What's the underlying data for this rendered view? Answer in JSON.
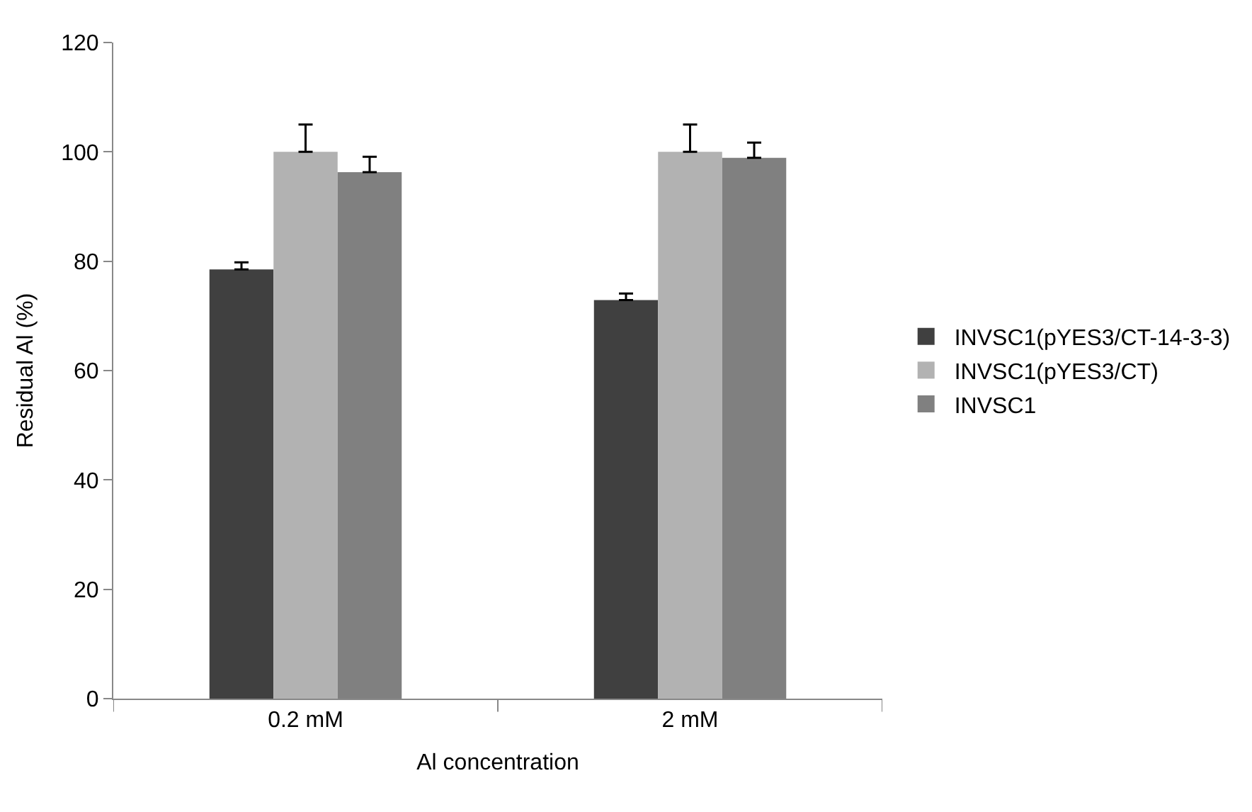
{
  "chart_data": {
    "type": "bar",
    "xlabel": "Al concentration",
    "ylabel": "Residual Al (%)",
    "categories": [
      "0.2 mM",
      "2 mM"
    ],
    "series": [
      {
        "name": "INVSC1(pYES3/CT-14-3-3)",
        "color": "#404040",
        "values": [
          78.5,
          72.9
        ],
        "errors": [
          1.3,
          1.2
        ]
      },
      {
        "name": "INVSC1(pYES3/CT)",
        "color": "#b2b2b2",
        "values": [
          100,
          100
        ],
        "errors": [
          5,
          5
        ]
      },
      {
        "name": "INVSC1",
        "color": "#808080",
        "values": [
          96.3,
          98.9
        ],
        "errors": [
          2.8,
          2.8
        ]
      }
    ],
    "ylim": [
      0,
      120
    ],
    "yticks": [
      0,
      20,
      40,
      60,
      80,
      100,
      120
    ],
    "grid": false,
    "legend": "right"
  }
}
